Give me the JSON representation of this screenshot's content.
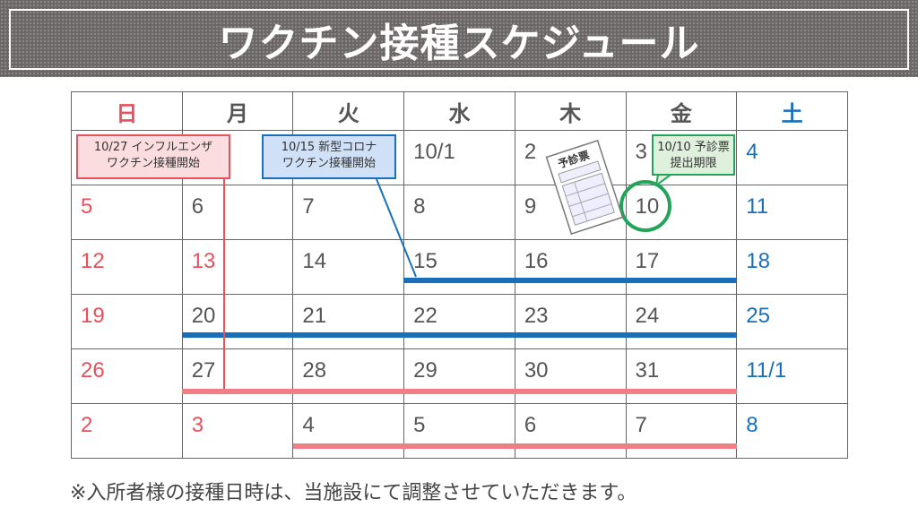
{
  "title": "ワクチン接種スケジュール",
  "weekdays": [
    {
      "label": "日",
      "color": "red"
    },
    {
      "label": "月",
      "color": ""
    },
    {
      "label": "火",
      "color": ""
    },
    {
      "label": "水",
      "color": ""
    },
    {
      "label": "木",
      "color": ""
    },
    {
      "label": "金",
      "color": ""
    },
    {
      "label": "土",
      "color": "blue"
    }
  ],
  "weeks": [
    [
      {
        "d": ""
      },
      {
        "d": ""
      },
      {
        "d": ""
      },
      {
        "d": "10/1"
      },
      {
        "d": "2"
      },
      {
        "d": "3"
      },
      {
        "d": "4",
        "c": "blue"
      }
    ],
    [
      {
        "d": "5",
        "c": "red"
      },
      {
        "d": "6"
      },
      {
        "d": "7"
      },
      {
        "d": "8"
      },
      {
        "d": "9"
      },
      {
        "d": "10"
      },
      {
        "d": "11",
        "c": "blue"
      }
    ],
    [
      {
        "d": "12",
        "c": "red"
      },
      {
        "d": "13",
        "c": "red"
      },
      {
        "d": "14"
      },
      {
        "d": "15"
      },
      {
        "d": "16"
      },
      {
        "d": "17"
      },
      {
        "d": "18",
        "c": "blue"
      }
    ],
    [
      {
        "d": "19",
        "c": "red"
      },
      {
        "d": "20"
      },
      {
        "d": "21"
      },
      {
        "d": "22"
      },
      {
        "d": "23"
      },
      {
        "d": "24"
      },
      {
        "d": "25",
        "c": "blue"
      }
    ],
    [
      {
        "d": "26",
        "c": "red"
      },
      {
        "d": "27"
      },
      {
        "d": "28"
      },
      {
        "d": "29"
      },
      {
        "d": "30"
      },
      {
        "d": "31"
      },
      {
        "d": "11/1",
        "c": "blue"
      }
    ],
    [
      {
        "d": "2",
        "c": "red"
      },
      {
        "d": "3",
        "c": "red"
      },
      {
        "d": "4"
      },
      {
        "d": "5"
      },
      {
        "d": "6"
      },
      {
        "d": "7"
      },
      {
        "d": "8",
        "c": "blue"
      }
    ]
  ],
  "callouts": {
    "deadline": {
      "line1": "10/10 予診票",
      "line2": "提出期限",
      "color": "#22a55a"
    },
    "covid": {
      "line1": "10/15 新型コロナ",
      "line2": "ワクチン接種開始",
      "color": "#1a6fba"
    },
    "flu": {
      "line1": "10/27 インフルエンザ",
      "line2": "ワクチン接種開始",
      "color": "#e8505b"
    }
  },
  "illustration": {
    "label": "予診票"
  },
  "colors": {
    "covid_bar": "#1a6fba",
    "flu_bar": "#f07e84",
    "highlight_circle": "#22a55a"
  },
  "note": "※入所者様の接種日時は、当施設にて調整させていただきます。"
}
